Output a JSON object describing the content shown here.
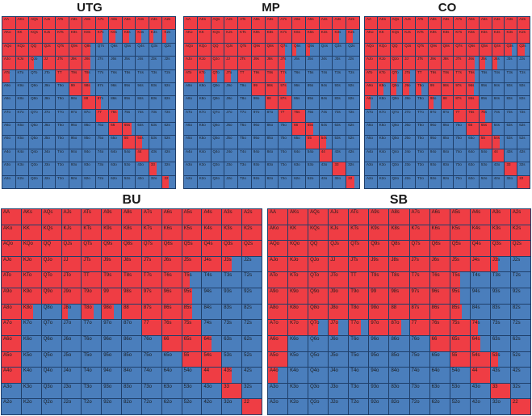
{
  "colors": {
    "raise": "#ef3d44",
    "fold": "#4a7ebc",
    "gridline": "#1f3f6a",
    "title": "#1a1a1a"
  },
  "hand_labels": [
    [
      "AA",
      "AKs",
      "AQs",
      "AJs",
      "ATs",
      "A9s",
      "A8s",
      "A7s",
      "A6s",
      "A5s",
      "A4s",
      "A3s",
      "A2s"
    ],
    [
      "AKo",
      "KK",
      "KQs",
      "KJs",
      "KTs",
      "K9s",
      "K8s",
      "K7s",
      "K6s",
      "K5s",
      "K4s",
      "K3s",
      "K2s"
    ],
    [
      "AQo",
      "KQo",
      "QQ",
      "QJs",
      "QTs",
      "Q9s",
      "Q8s",
      "Q7s",
      "Q6s",
      "Q5s",
      "Q4s",
      "Q3s",
      "Q2s"
    ],
    [
      "AJo",
      "KJo",
      "QJo",
      "JJ",
      "JTs",
      "J9s",
      "J8s",
      "J7s",
      "J6s",
      "J5s",
      "J4s",
      "J3s",
      "J2s"
    ],
    [
      "ATo",
      "KTo",
      "QTo",
      "JTo",
      "TT",
      "T9s",
      "T8s",
      "T7s",
      "T6s",
      "T5s",
      "T4s",
      "T3s",
      "T2s"
    ],
    [
      "A9o",
      "K9o",
      "Q9o",
      "J9o",
      "T9o",
      "99",
      "98s",
      "97s",
      "96s",
      "95s",
      "94s",
      "93s",
      "92s"
    ],
    [
      "A8o",
      "K8o",
      "Q8o",
      "J8o",
      "T8o",
      "98o",
      "88",
      "87s",
      "86s",
      "85s",
      "84s",
      "83s",
      "82s"
    ],
    [
      "A7o",
      "K7o",
      "Q7o",
      "J7o",
      "T7o",
      "97o",
      "87o",
      "77",
      "76s",
      "75s",
      "74s",
      "73s",
      "72s"
    ],
    [
      "A6o",
      "K6o",
      "Q6o",
      "J6o",
      "T6o",
      "96o",
      "86o",
      "76o",
      "66",
      "65s",
      "64s",
      "63s",
      "62s"
    ],
    [
      "A5o",
      "K5o",
      "Q5o",
      "J5o",
      "T5o",
      "95o",
      "85o",
      "75o",
      "65o",
      "55",
      "54s",
      "53s",
      "52s"
    ],
    [
      "A4o",
      "K4o",
      "Q4o",
      "J4o",
      "T4o",
      "94o",
      "84o",
      "74o",
      "64o",
      "54o",
      "44",
      "43s",
      "42s"
    ],
    [
      "A3o",
      "K3o",
      "Q3o",
      "J3o",
      "T3o",
      "93o",
      "83o",
      "73o",
      "63o",
      "53o",
      "43o",
      "33",
      "32s"
    ],
    [
      "A2o",
      "K2o",
      "Q2o",
      "J2o",
      "T2o",
      "92o",
      "82o",
      "72o",
      "62o",
      "52o",
      "42o",
      "32o",
      "22"
    ]
  ],
  "chart_data": [
    {
      "type": "heatmap",
      "title": "UTG",
      "raise_frequency": [
        [
          1,
          1,
          1,
          1,
          1,
          1,
          1,
          1,
          1,
          1,
          1,
          1,
          1
        ],
        [
          1,
          1,
          1,
          1,
          1,
          1,
          1,
          0.5,
          0.5,
          0.5,
          0.4,
          0.3,
          0.3
        ],
        [
          1,
          1,
          1,
          1,
          1,
          1,
          0.6,
          0,
          0,
          0,
          0,
          0,
          0
        ],
        [
          1,
          1,
          0.4,
          1,
          1,
          1,
          0.6,
          0,
          0,
          0,
          0,
          0,
          0
        ],
        [
          0.6,
          0,
          0,
          0,
          1,
          1,
          0.5,
          0,
          0,
          0,
          0,
          0,
          0
        ],
        [
          0,
          0,
          0,
          0,
          0,
          1,
          0.6,
          0,
          0,
          0,
          0,
          0,
          0
        ],
        [
          0,
          0,
          0,
          0,
          0,
          0,
          1,
          0.4,
          0,
          0,
          0,
          0,
          0
        ],
        [
          0,
          0,
          0,
          0,
          0,
          0,
          0,
          1,
          0.7,
          0,
          0,
          0,
          0
        ],
        [
          0,
          0,
          0,
          0,
          0,
          0,
          0,
          0,
          1,
          0.7,
          0,
          0,
          0
        ],
        [
          0,
          0,
          0,
          0,
          0,
          0,
          0,
          0,
          0,
          1,
          0.5,
          0,
          0
        ],
        [
          0,
          0,
          0,
          0,
          0,
          0,
          0,
          0,
          0,
          0,
          1,
          0,
          0
        ],
        [
          0,
          0,
          0,
          0,
          0,
          0,
          0,
          0,
          0,
          0,
          0,
          0.6,
          0
        ],
        [
          0,
          0,
          0,
          0,
          0,
          0,
          0,
          0,
          0,
          0,
          0,
          0,
          0.5
        ]
      ]
    },
    {
      "type": "heatmap",
      "title": "MP",
      "raise_frequency": [
        [
          1,
          1,
          1,
          1,
          1,
          1,
          1,
          1,
          1,
          1,
          1,
          1,
          1
        ],
        [
          1,
          1,
          1,
          1,
          1,
          1,
          1,
          1,
          1,
          1,
          1,
          0.5,
          0.5
        ],
        [
          1,
          1,
          1,
          1,
          1,
          1,
          1,
          0.5,
          0.3,
          0.3,
          0,
          0,
          0
        ],
        [
          1,
          1,
          1,
          1,
          1,
          1,
          1,
          0.5,
          0,
          0,
          0,
          0,
          0
        ],
        [
          1,
          0.5,
          0.5,
          0.5,
          1,
          1,
          1,
          0.5,
          0,
          0,
          0,
          0,
          0
        ],
        [
          0,
          0,
          0,
          0,
          0,
          1,
          1,
          0.6,
          0,
          0,
          0,
          0,
          0
        ],
        [
          0,
          0,
          0,
          0,
          0,
          0,
          1,
          1,
          0,
          0,
          0,
          0,
          0
        ],
        [
          0,
          0,
          0,
          0,
          0,
          0,
          0,
          1,
          1,
          0,
          0,
          0,
          0
        ],
        [
          0,
          0,
          0,
          0,
          0,
          0,
          0,
          0,
          1,
          0.6,
          0,
          0,
          0
        ],
        [
          0,
          0,
          0,
          0,
          0,
          0,
          0,
          0,
          0,
          1,
          0.5,
          0,
          0
        ],
        [
          0,
          0,
          0,
          0,
          0,
          0,
          0,
          0,
          0,
          0,
          1,
          0,
          0
        ],
        [
          0,
          0,
          0,
          0,
          0,
          0,
          0,
          0,
          0,
          0,
          0,
          1,
          0
        ],
        [
          0,
          0,
          0,
          0,
          0,
          0,
          0,
          0,
          0,
          0,
          0,
          0,
          0.6
        ]
      ]
    },
    {
      "type": "heatmap",
      "title": "CO",
      "raise_frequency": [
        [
          1,
          1,
          1,
          1,
          1,
          1,
          1,
          1,
          1,
          1,
          1,
          1,
          1
        ],
        [
          1,
          1,
          1,
          1,
          1,
          1,
          1,
          1,
          1,
          1,
          1,
          1,
          1
        ],
        [
          1,
          1,
          1,
          1,
          1,
          1,
          1,
          1,
          1,
          1,
          1,
          0.6,
          0.6
        ],
        [
          1,
          1,
          1,
          1,
          1,
          1,
          1,
          1,
          0.7,
          0.5,
          0.4,
          0,
          0
        ],
        [
          1,
          1,
          0.6,
          0.6,
          1,
          1,
          1,
          1,
          0.7,
          0,
          0,
          0,
          0
        ],
        [
          1,
          0.5,
          0.5,
          0.5,
          0.5,
          1,
          1,
          1,
          0.6,
          0,
          0,
          0,
          0
        ],
        [
          0.5,
          0,
          0,
          0,
          0,
          0.4,
          1,
          1,
          1,
          0,
          0,
          0,
          0
        ],
        [
          0,
          0,
          0,
          0,
          0,
          0,
          0,
          1,
          1,
          0.5,
          0,
          0,
          0
        ],
        [
          0,
          0,
          0,
          0,
          0,
          0,
          0,
          0,
          1,
          1,
          0,
          0,
          0
        ],
        [
          0,
          0,
          0,
          0,
          0,
          0,
          0,
          0,
          0,
          1,
          0.6,
          0,
          0
        ],
        [
          0,
          0,
          0,
          0,
          0,
          0,
          0,
          0,
          0,
          0,
          1,
          0,
          0
        ],
        [
          0,
          0,
          0,
          0,
          0,
          0,
          0,
          0,
          0,
          0,
          0,
          1,
          0
        ],
        [
          0,
          0,
          0,
          0,
          0,
          0,
          0,
          0,
          0,
          0,
          0,
          0,
          1
        ]
      ]
    },
    {
      "type": "heatmap",
      "title": "BU",
      "raise_frequency": [
        [
          1,
          1,
          1,
          1,
          1,
          1,
          1,
          1,
          1,
          1,
          1,
          1,
          1
        ],
        [
          1,
          1,
          1,
          1,
          1,
          1,
          1,
          1,
          1,
          1,
          1,
          1,
          1
        ],
        [
          1,
          1,
          1,
          1,
          1,
          1,
          1,
          1,
          1,
          1,
          1,
          1,
          1
        ],
        [
          1,
          1,
          1,
          1,
          1,
          1,
          1,
          1,
          1,
          1,
          1,
          0.5,
          0
        ],
        [
          1,
          1,
          1,
          1,
          1,
          1,
          1,
          1,
          1,
          0.4,
          0,
          0,
          0
        ],
        [
          1,
          1,
          1,
          1,
          1,
          1,
          1,
          1,
          1,
          0.5,
          0,
          0,
          0
        ],
        [
          1,
          0.6,
          0,
          0.3,
          0.6,
          0.6,
          1,
          1,
          1,
          0.5,
          0,
          0,
          0
        ],
        [
          1,
          0,
          0,
          0,
          0,
          0,
          0,
          1,
          1,
          1,
          0,
          0,
          0
        ],
        [
          1,
          0,
          0,
          0,
          0,
          0,
          0,
          0,
          1,
          1,
          0.5,
          0,
          0
        ],
        [
          1,
          0,
          0,
          0,
          0,
          0,
          0,
          0,
          0,
          1,
          1,
          0,
          0
        ],
        [
          1,
          0,
          0,
          0,
          0,
          0,
          0,
          0,
          0,
          0,
          1,
          0.5,
          0
        ],
        [
          0,
          0,
          0,
          0,
          0,
          0,
          0,
          0,
          0,
          0,
          0,
          1,
          0
        ],
        [
          0,
          0,
          0,
          0,
          0,
          0,
          0,
          0,
          0,
          0,
          0,
          0,
          1
        ]
      ]
    },
    {
      "type": "heatmap",
      "title": "SB",
      "raise_frequency": [
        [
          1,
          1,
          1,
          1,
          1,
          1,
          1,
          1,
          1,
          1,
          1,
          1,
          1
        ],
        [
          1,
          1,
          1,
          1,
          1,
          1,
          1,
          1,
          1,
          1,
          1,
          1,
          1
        ],
        [
          1,
          1,
          1,
          1,
          1,
          1,
          1,
          1,
          1,
          1,
          1,
          1,
          1
        ],
        [
          1,
          1,
          1,
          1,
          1,
          1,
          1,
          1,
          1,
          1,
          1,
          0.4,
          0
        ],
        [
          1,
          1,
          1,
          1,
          1,
          1,
          1,
          1,
          1,
          0.5,
          0,
          0,
          0
        ],
        [
          1,
          1,
          1,
          1,
          1,
          1,
          1,
          1,
          1,
          0.5,
          0,
          0,
          0
        ],
        [
          1,
          1,
          1,
          1,
          1,
          1,
          1,
          1,
          1,
          0.6,
          0,
          0,
          0
        ],
        [
          1,
          1,
          0.5,
          0.5,
          0.6,
          1,
          0.6,
          1,
          1,
          1,
          0.4,
          0,
          0
        ],
        [
          1,
          0,
          0,
          0,
          0,
          0,
          0,
          0,
          1,
          1,
          0.5,
          0,
          0
        ],
        [
          1,
          0,
          0,
          0,
          0,
          0,
          0,
          0,
          0,
          1,
          1,
          0.4,
          0
        ],
        [
          0.5,
          0,
          0,
          0,
          0,
          0,
          0,
          0,
          0,
          0,
          1,
          0,
          0
        ],
        [
          0,
          0,
          0,
          0,
          0,
          0,
          0,
          0,
          0,
          0,
          0,
          1,
          0
        ],
        [
          0,
          0,
          0,
          0,
          0,
          0,
          0,
          0,
          0,
          0,
          0,
          0,
          1
        ]
      ]
    }
  ]
}
